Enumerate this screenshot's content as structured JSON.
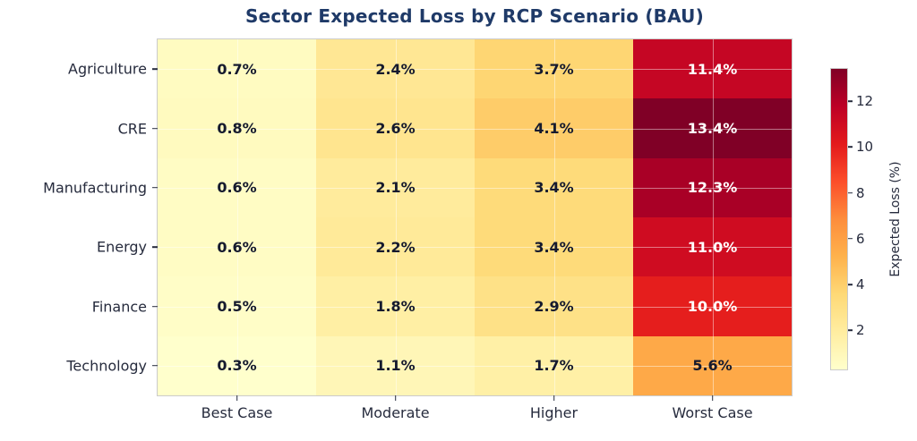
{
  "chart_data": {
    "type": "heatmap",
    "title": "Sector Expected Loss by RCP Scenario (BAU)",
    "rows": [
      "Agriculture",
      "CRE",
      "Manufacturing",
      "Energy",
      "Finance",
      "Technology"
    ],
    "columns": [
      "Best Case",
      "Moderate",
      "Higher",
      "Worst Case"
    ],
    "values": [
      [
        0.7,
        2.4,
        3.7,
        11.4
      ],
      [
        0.8,
        2.6,
        4.1,
        13.4
      ],
      [
        0.6,
        2.1,
        3.4,
        12.3
      ],
      [
        0.6,
        2.2,
        3.4,
        11.0
      ],
      [
        0.5,
        1.8,
        2.9,
        10.0
      ],
      [
        0.3,
        1.1,
        1.7,
        5.6
      ]
    ],
    "annotation_format": "one_decimal_percent",
    "colormap": "YlOrRd",
    "vmin": 0.3,
    "vmax": 13.4,
    "grid": true,
    "colorbar": {
      "label": "Expected Loss (%)",
      "ticks": [
        2,
        4,
        6,
        8,
        10,
        12
      ],
      "position": "right"
    }
  },
  "colors": {
    "title": "#1f3a68",
    "tick_label": "#262b3d",
    "annot_dark": "#151a2e",
    "annot_light": "#ffffff",
    "frame_border": "#cbcbcb",
    "gridline": "rgba(255,255,255,0.45)",
    "background": "#ffffff",
    "colormap_stops": [
      "#ffffcc",
      "#ffeda0",
      "#fed976",
      "#feb24c",
      "#fd8d3c",
      "#fc4e2a",
      "#e31a1c",
      "#bd0026",
      "#800026"
    ]
  }
}
